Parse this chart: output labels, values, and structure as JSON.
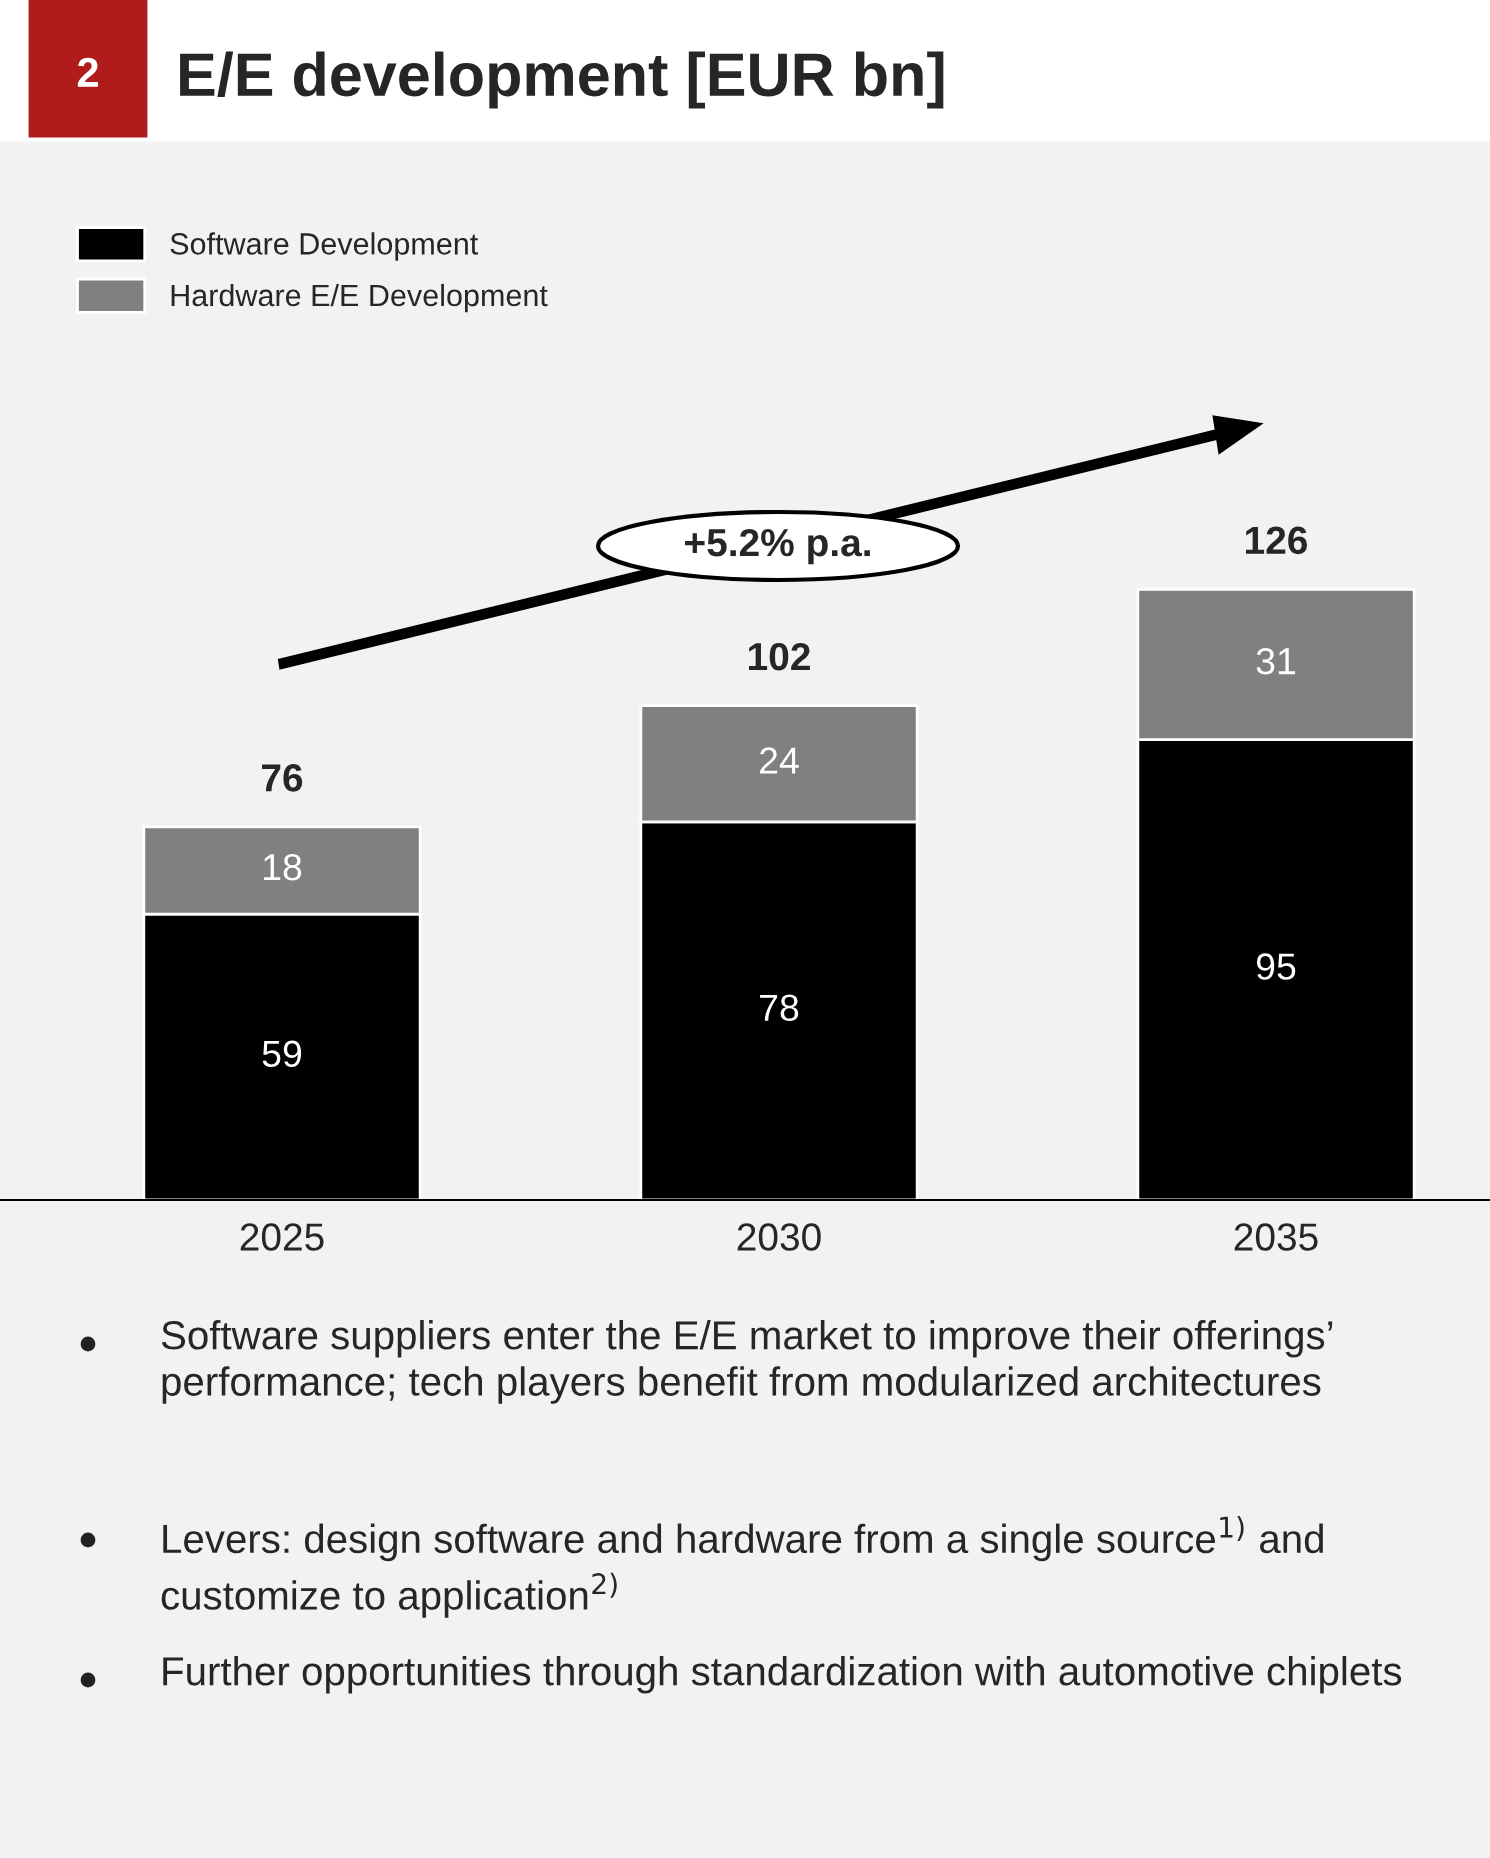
{
  "chart_data": {
    "type": "bar",
    "title": "E/E development [EUR bn]",
    "stacked": true,
    "data_labels": true,
    "legend": "top left",
    "grid": false,
    "categories": [
      "2025",
      "2030",
      "2035"
    ],
    "series": [
      {
        "name": "Software Development",
        "color": "#000000",
        "values": [
          59,
          78,
          95
        ]
      },
      {
        "name": "Hardware E/E Development",
        "color": "#808080",
        "values": [
          18,
          24,
          31
        ]
      }
    ],
    "totals": [
      "76",
      "102",
      "126"
    ],
    "annotations": [
      "2",
      "+5.2% p.a.",
      "Software suppliers enter the E/E market to improve their offerings’ performance; tech players benefit from modularized architectures",
      "Levers: design software and hardware from a single source$^{1)}$ and customize to application$^{2)}$",
      "Further opportunities through standardization with automotive chiplets"
    ]
  }
}
